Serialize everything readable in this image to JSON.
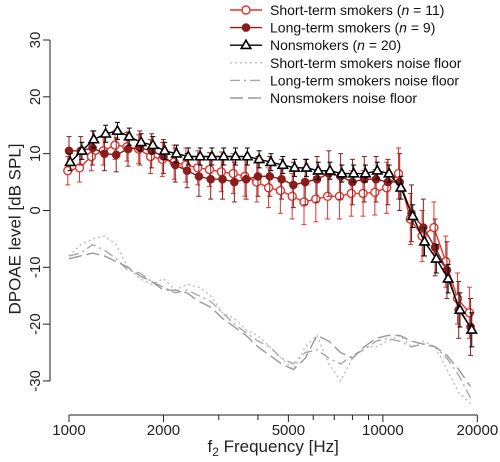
{
  "chart_data": {
    "type": "line",
    "xlabel": "f₂ Frequency [Hz]",
    "ylabel": "DPOAE level [dB SPL]",
    "xscale": "log",
    "xlim": [
      950,
      21000
    ],
    "ylim": [
      -33,
      30
    ],
    "xticks": [
      1000,
      2000,
      5000,
      10000,
      20000
    ],
    "xtick_labels": [
      "1000",
      "2000",
      "5000",
      "10000",
      "20000"
    ],
    "yticks": [
      -30,
      -20,
      -10,
      0,
      10,
      20,
      30
    ],
    "ytick_labels": [
      "-30",
      "-20",
      "-10",
      "0",
      "10",
      "20",
      "30"
    ],
    "grid": false,
    "legend_position": "top-right",
    "x": [
      1000,
      1090,
      1189,
      1297,
      1414,
      1542,
      1682,
      1834,
      2000,
      2181,
      2378,
      2594,
      2828,
      3084,
      3364,
      3668,
      4000,
      4362,
      4757,
      5187,
      5657,
      6169,
      6727,
      7336,
      8000,
      8724,
      9514,
      10375,
      11314,
      12338,
      13454,
      14672,
      16000,
      17448,
      19027
    ],
    "series": [
      {
        "name": "Short-term smokers (n = 11)",
        "marker": "open-circle",
        "color": "#e0352e",
        "values": [
          7,
          7.5,
          9.5,
          10.5,
          11.5,
          11.2,
          10.8,
          9.5,
          9,
          8.5,
          8,
          7.5,
          7.2,
          6.8,
          6.5,
          6,
          5,
          4,
          3.5,
          2.5,
          1.5,
          2,
          2.5,
          2.5,
          3,
          3,
          3.2,
          4,
          6.5,
          -1.5,
          -4.5,
          -3,
          -9,
          -15.5,
          -18
        ],
        "errors": [
          2.5,
          2.5,
          2.5,
          2.5,
          2.5,
          2.5,
          2.5,
          3,
          3,
          3,
          3,
          3,
          3,
          3.5,
          3.5,
          3.5,
          3.5,
          3.5,
          4,
          4,
          4,
          4,
          4,
          4,
          4,
          4,
          4,
          4.5,
          4.5,
          4.5,
          4.5,
          4.5,
          4.5,
          4.5,
          4.5
        ]
      },
      {
        "name": "Long-term smokers (n = 9)",
        "marker": "filled-circle",
        "color": "#8b1c1c",
        "values": [
          10.5,
          10.5,
          11,
          10,
          9.8,
          10.8,
          11,
          10.5,
          9.5,
          8,
          7,
          6,
          5.5,
          5.5,
          5,
          5.5,
          6,
          6,
          5.5,
          4.5,
          5,
          5.5,
          6.5,
          6,
          5,
          5.5,
          5.5,
          5,
          5,
          -0.5,
          -3,
          -6.5,
          -10.5,
          -17.5,
          -20.5
        ],
        "errors": [
          2.5,
          2.5,
          3,
          3,
          3,
          3,
          3,
          3,
          3,
          3,
          3,
          3.5,
          3.5,
          3.5,
          3.5,
          3.5,
          3.5,
          3.5,
          3.5,
          4,
          4,
          4,
          4,
          4,
          4,
          4,
          4,
          4,
          5,
          5,
          5,
          5,
          5,
          5,
          5
        ]
      },
      {
        "name": "Nonsmokers (n = 20)",
        "marker": "open-triangle",
        "color": "#000000",
        "values": [
          8.5,
          10.5,
          12.5,
          13.5,
          14,
          13,
          12,
          11.5,
          10.5,
          10,
          9.5,
          9.5,
          9.5,
          9.5,
          9.5,
          9.5,
          9,
          8.5,
          8,
          7.5,
          7.5,
          7,
          7,
          6.5,
          6.5,
          6.5,
          7,
          6.5,
          4,
          -1,
          -5.5,
          -8.5,
          -12,
          -17.5,
          -21
        ],
        "errors": [
          1.5,
          1.5,
          1.5,
          1.5,
          1.5,
          1.5,
          1.5,
          1.5,
          1.5,
          1.5,
          1.5,
          1.5,
          1.5,
          1.5,
          1.5,
          1.5,
          1.5,
          1.5,
          1.5,
          1.5,
          1.5,
          1.5,
          1.5,
          1.5,
          1.5,
          1.5,
          1.5,
          1.5,
          2,
          2,
          2.5,
          2.5,
          2.5,
          3,
          3
        ]
      },
      {
        "name": "Short-term smokers noise floor",
        "line_style": "dotted",
        "color": "#bdbdbd",
        "values": [
          -8,
          -6,
          -5,
          -4.5,
          -6,
          -10,
          -12,
          -13,
          -12,
          -14,
          -13,
          -13.5,
          -15,
          -18,
          -19,
          -21,
          -22,
          -24,
          -26,
          -28,
          -24,
          -22,
          -27,
          -30,
          -26,
          -24,
          -24,
          -23,
          -22,
          -24,
          -23,
          -24,
          -28,
          -32,
          -34
        ]
      },
      {
        "name": "Long-term smokers noise floor",
        "line_style": "dash-dot",
        "color": "#a8a8a8",
        "values": [
          -8,
          -7.5,
          -6,
          -7,
          -8.5,
          -10.5,
          -11,
          -12.5,
          -13.5,
          -14.5,
          -14,
          -15,
          -16,
          -18,
          -20,
          -21.5,
          -23,
          -24,
          -26,
          -27,
          -25,
          -24.5,
          -26,
          -27,
          -25.5,
          -24.5,
          -23,
          -22.5,
          -23,
          -24,
          -23.5,
          -24,
          -26,
          -29,
          -33
        ]
      },
      {
        "name": "Nonsmokers noise floor",
        "line_style": "long-dash",
        "color": "#999999",
        "values": [
          -8.5,
          -8,
          -7.5,
          -8,
          -9,
          -10,
          -11.5,
          -12.5,
          -14,
          -14,
          -14.5,
          -16,
          -17,
          -19,
          -20.5,
          -22,
          -24,
          -25.5,
          -27,
          -28,
          -26,
          -22,
          -23,
          -25,
          -26,
          -24,
          -22.5,
          -22,
          -22,
          -23,
          -23.5,
          -24,
          -25.5,
          -28,
          -31
        ]
      }
    ]
  }
}
